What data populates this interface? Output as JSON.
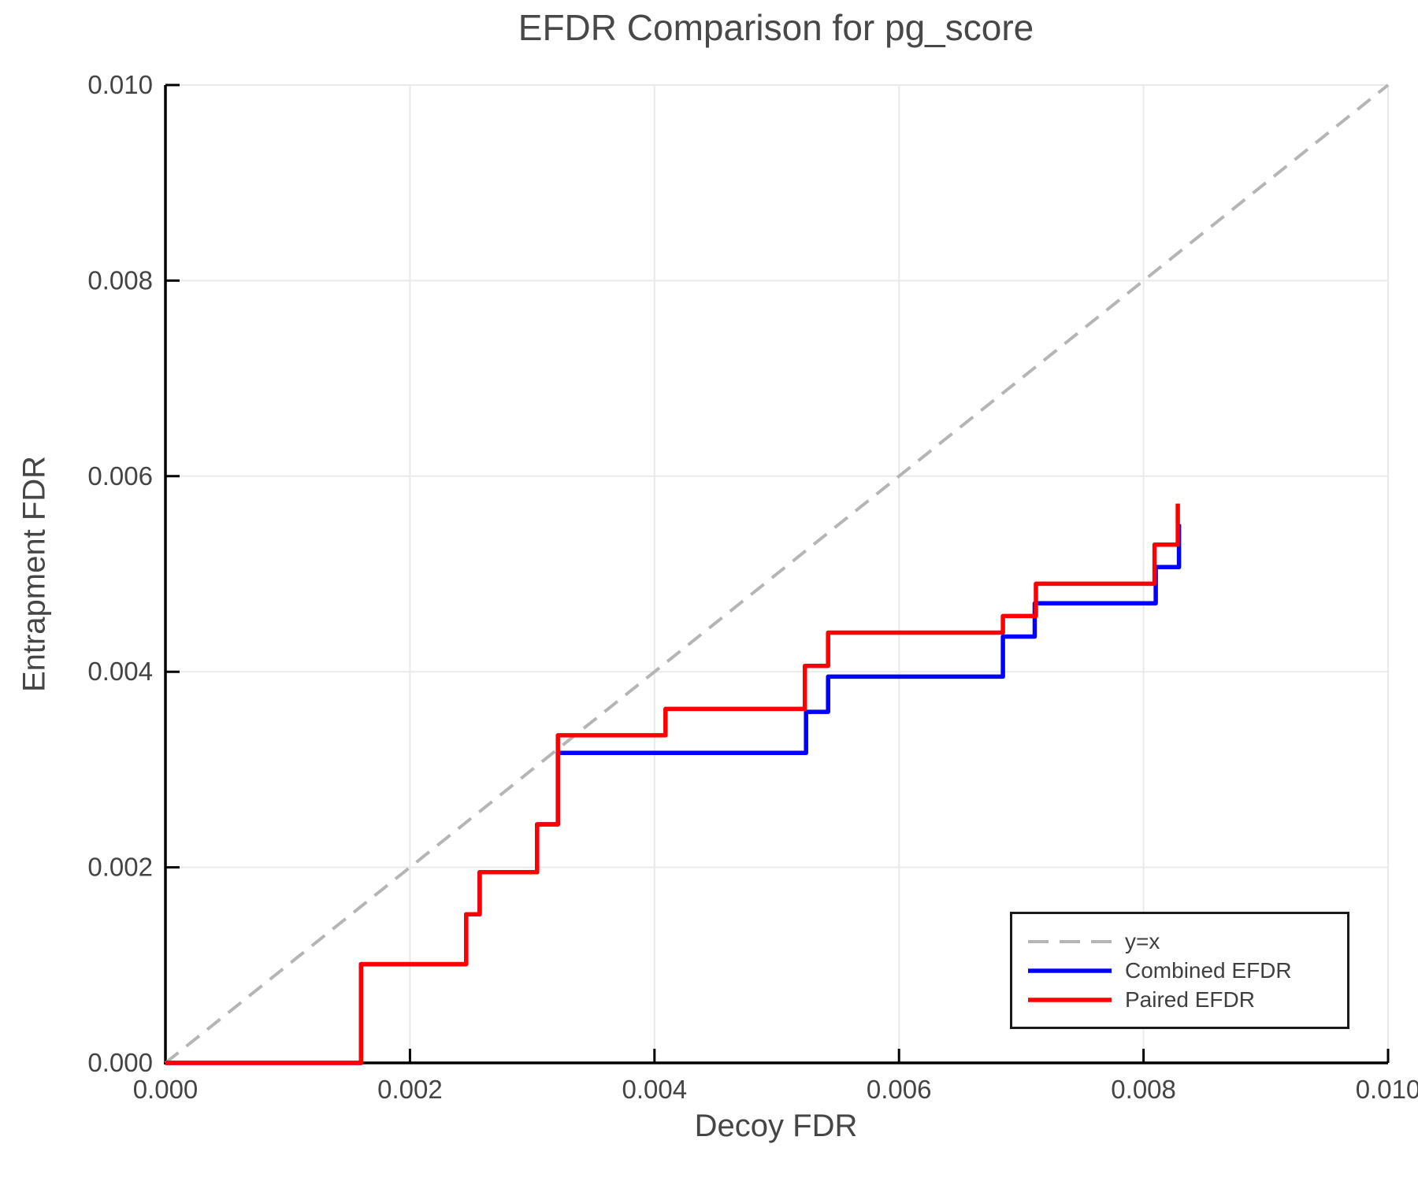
{
  "chart_data": {
    "type": "line",
    "title": "EFDR Comparison for pg_score",
    "xlabel": "Decoy FDR",
    "ylabel": "Entrapment FDR",
    "xlim": [
      0,
      0.01
    ],
    "ylim": [
      0,
      0.01
    ],
    "grid": true,
    "legend_position": "lower right",
    "xticks": {
      "values": [
        0,
        0.002,
        0.004,
        0.006,
        0.008,
        0.01
      ],
      "labels": [
        "0.000",
        "0.002",
        "0.004",
        "0.006",
        "0.008",
        "0.010"
      ]
    },
    "yticks": {
      "values": [
        0,
        0.002,
        0.004,
        0.006,
        0.008,
        0.01
      ],
      "labels": [
        "0.000",
        "0.002",
        "0.004",
        "0.006",
        "0.008",
        "0.010"
      ]
    },
    "series": [
      {
        "name": "y=x",
        "color": "#b5b5b5",
        "dash": true,
        "width": 4,
        "points": [
          [
            0,
            0
          ],
          [
            0.01,
            0.01
          ]
        ]
      },
      {
        "name": "Combined EFDR",
        "color": "#0000ff",
        "dash": false,
        "width": 5.5,
        "points": [
          [
            0,
            0
          ],
          [
            0.0016,
            0
          ],
          [
            0.0016,
            0.00101
          ],
          [
            0.00246,
            0.00101
          ],
          [
            0.00246,
            0.00152
          ],
          [
            0.00257,
            0.00152
          ],
          [
            0.00257,
            0.00195
          ],
          [
            0.00304,
            0.00195
          ],
          [
            0.00304,
            0.00244
          ],
          [
            0.00321,
            0.00244
          ],
          [
            0.00321,
            0.00317
          ],
          [
            0.00524,
            0.00317
          ],
          [
            0.00524,
            0.00359
          ],
          [
            0.00542,
            0.00359
          ],
          [
            0.00542,
            0.00395
          ],
          [
            0.00685,
            0.00395
          ],
          [
            0.00685,
            0.00436
          ],
          [
            0.00711,
            0.00436
          ],
          [
            0.00711,
            0.0047
          ],
          [
            0.0081,
            0.0047
          ],
          [
            0.0081,
            0.00507
          ],
          [
            0.00829,
            0.00507
          ],
          [
            0.00829,
            0.00551
          ]
        ]
      },
      {
        "name": "Paired EFDR",
        "color": "#ff0000",
        "dash": false,
        "width": 5.5,
        "points": [
          [
            0,
            0
          ],
          [
            0.0016,
            0
          ],
          [
            0.0016,
            0.00101
          ],
          [
            0.00246,
            0.00101
          ],
          [
            0.00246,
            0.00152
          ],
          [
            0.00257,
            0.00152
          ],
          [
            0.00257,
            0.00195
          ],
          [
            0.00304,
            0.00195
          ],
          [
            0.00304,
            0.00244
          ],
          [
            0.00321,
            0.00244
          ],
          [
            0.00321,
            0.00335
          ],
          [
            0.00409,
            0.00335
          ],
          [
            0.00409,
            0.00362
          ],
          [
            0.00523,
            0.00362
          ],
          [
            0.00523,
            0.00406
          ],
          [
            0.00542,
            0.00406
          ],
          [
            0.00542,
            0.0044
          ],
          [
            0.00685,
            0.0044
          ],
          [
            0.00685,
            0.00457
          ],
          [
            0.00712,
            0.00457
          ],
          [
            0.00712,
            0.0049
          ],
          [
            0.00809,
            0.0049
          ],
          [
            0.00809,
            0.0053
          ],
          [
            0.00828,
            0.0053
          ],
          [
            0.00828,
            0.00572
          ]
        ]
      }
    ],
    "style": {
      "grid_color": "#e9e9e9",
      "axis_color": "#000000",
      "tick_text_color": "#444444",
      "legend_border_color": "#1a1a1a"
    }
  }
}
